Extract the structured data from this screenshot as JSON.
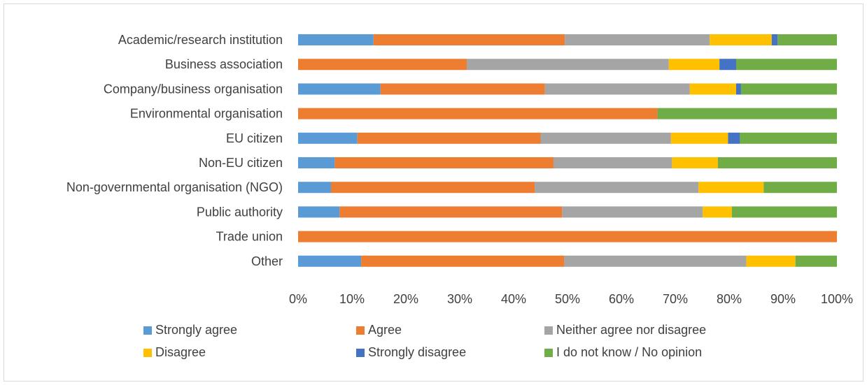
{
  "chart_data": {
    "type": "bar",
    "orientation": "horizontal",
    "stacked": true,
    "normalized_percent": true,
    "categories": [
      "Academic/research institution",
      "Business association",
      "Company/business organisation",
      "Environmental organisation",
      "EU citizen",
      "Non-EU citizen",
      "Non-governmental organisation (NGO)",
      "Public authority",
      "Trade union",
      "Other"
    ],
    "series": [
      {
        "name": "Strongly agree",
        "color": "#5B9BD5",
        "values": [
          14.0,
          0,
          15.3,
          0,
          11.0,
          6.8,
          6.1,
          7.7,
          0,
          11.7
        ]
      },
      {
        "name": "Agree",
        "color": "#ED7D31",
        "values": [
          35.5,
          31.3,
          30.5,
          66.7,
          34.0,
          40.6,
          37.8,
          41.3,
          100,
          37.7
        ]
      },
      {
        "name": "Neither agree nor disagree",
        "color": "#A5A5A5",
        "values": [
          26.9,
          37.5,
          26.9,
          0,
          24.2,
          22.0,
          30.4,
          26.1,
          0,
          33.8
        ]
      },
      {
        "name": "Disagree",
        "color": "#FFC000",
        "values": [
          11.5,
          9.4,
          8.6,
          0,
          10.6,
          8.5,
          12.1,
          5.4,
          0,
          9.1
        ]
      },
      {
        "name": "Strongly disagree",
        "color": "#4472C4",
        "values": [
          1.1,
          3.1,
          0.9,
          0,
          2.2,
          0,
          0,
          0,
          0,
          0
        ]
      },
      {
        "name": "I do not know / No opinion",
        "color": "#70AD47",
        "values": [
          11.0,
          18.7,
          17.8,
          33.3,
          18.0,
          22.1,
          13.6,
          19.5,
          0,
          7.7
        ]
      }
    ],
    "x_ticks": [
      "0%",
      "10%",
      "20%",
      "30%",
      "40%",
      "50%",
      "60%",
      "70%",
      "80%",
      "90%",
      "100%"
    ],
    "xlim": [
      0,
      100
    ],
    "grid": false,
    "legend_position": "bottom",
    "title": "",
    "xlabel": "",
    "ylabel": ""
  }
}
